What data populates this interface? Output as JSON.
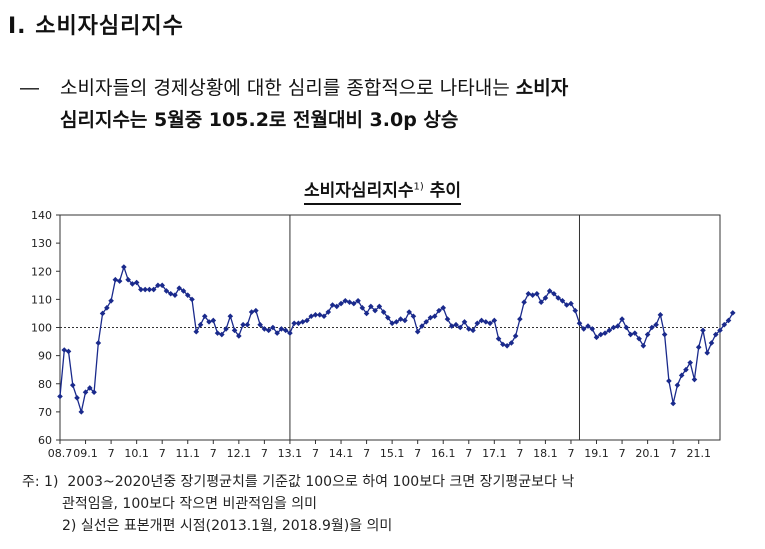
{
  "section": {
    "title": "Ⅰ. 소비자심리지수"
  },
  "lead": {
    "dash": "―",
    "text_normal": "소비자들의 경제상황에 대한 심리를 종합적으로 나타내는 ",
    "text_bold_1": "소비자",
    "line2": "심리지수는 5월중 105.2로 전월대비 3.0p 상승"
  },
  "chart_title": {
    "text": "소비자심리지수",
    "sup": "1)",
    "tail": "추이"
  },
  "notes": {
    "label": "주: 1)",
    "note1_a": "2003~2020년중 장기평균치를 기준값 100으로 하여 100보다 크면 장기평균보다 낙",
    "note1_b": "관적임을, 100보다 작으면 비관적임을 의미",
    "note2": "2) 실선은 표본개편 시점(2013.1월, 2018.9월)을 의미"
  },
  "chart_data": {
    "type": "line",
    "y_ticks": [
      60,
      70,
      80,
      90,
      100,
      110,
      120,
      130,
      140
    ],
    "ylim": [
      60,
      140
    ],
    "xlim": [
      2008.5,
      2021.4167
    ],
    "x_ticks": [
      {
        "label": "08.7",
        "x": 2008.5
      },
      {
        "label": "09.1",
        "x": 2009.0
      },
      {
        "label": "7",
        "x": 2009.5
      },
      {
        "label": "10.1",
        "x": 2010.0
      },
      {
        "label": "7",
        "x": 2010.5
      },
      {
        "label": "11.1",
        "x": 2011.0
      },
      {
        "label": "7",
        "x": 2011.5
      },
      {
        "label": "12.1",
        "x": 2012.0
      },
      {
        "label": "7",
        "x": 2012.5
      },
      {
        "label": "13.1",
        "x": 2013.0
      },
      {
        "label": "7",
        "x": 2013.5
      },
      {
        "label": "14.1",
        "x": 2014.0
      },
      {
        "label": "7",
        "x": 2014.5
      },
      {
        "label": "15.1",
        "x": 2015.0
      },
      {
        "label": "7",
        "x": 2015.5
      },
      {
        "label": "16.1",
        "x": 2016.0
      },
      {
        "label": "7",
        "x": 2016.5
      },
      {
        "label": "17.1",
        "x": 2017.0
      },
      {
        "label": "7",
        "x": 2017.5
      },
      {
        "label": "18.1",
        "x": 2018.0
      },
      {
        "label": "7",
        "x": 2018.5
      },
      {
        "label": "19.1",
        "x": 2019.0
      },
      {
        "label": "7",
        "x": 2019.5
      },
      {
        "label": "20.1",
        "x": 2020.0
      },
      {
        "label": "7",
        "x": 2020.5
      },
      {
        "label": "21.1",
        "x": 2021.0
      }
    ],
    "reference_line": 100,
    "vertical_lines": [
      2013.0,
      2018.6667
    ],
    "series_start": 2008.5,
    "series_step_months": 1,
    "series_values": [
      75.5,
      92,
      91.5,
      79.5,
      75,
      70,
      77,
      78.5,
      77,
      94.5,
      105,
      107,
      109.5,
      117,
      116.5,
      121.5,
      117,
      115.5,
      116,
      113.5,
      113.5,
      113.5,
      113.5,
      115,
      115,
      113,
      112,
      111.5,
      114,
      113,
      111.5,
      110,
      98.5,
      101,
      104,
      102,
      102.5,
      98,
      97.5,
      99.5,
      104,
      99,
      97,
      101,
      101,
      105.5,
      106,
      101,
      99.5,
      99,
      100,
      98,
      99.5,
      99,
      98,
      101.5,
      101.5,
      102,
      102.5,
      104,
      104.5,
      104.5,
      104,
      105.5,
      108,
      107.5,
      108.5,
      109.5,
      109,
      108.5,
      109.5,
      107,
      105,
      107.5,
      106,
      107.5,
      105.5,
      103.5,
      101.5,
      102,
      103,
      102.5,
      105.5,
      104,
      98.5,
      100.5,
      102,
      103.5,
      104,
      106,
      107,
      103,
      100.5,
      101,
      100,
      102,
      99.5,
      99,
      101.5,
      102.5,
      102,
      101.5,
      102.5,
      96,
      94,
      93.5,
      94.5,
      97,
      103,
      109,
      112,
      111.5,
      112,
      109,
      110.5,
      113,
      112,
      110.5,
      109.5,
      108,
      108.5,
      106,
      101.5,
      99.5,
      100.5,
      99.5,
      96.5,
      97.5,
      98,
      99,
      100,
      100.5,
      103,
      100,
      97.5,
      98,
      96,
      93.5,
      97.5,
      100,
      101,
      104.5,
      97.5,
      81,
      73,
      79.5,
      83,
      85,
      87.5,
      81.5,
      93,
      99,
      91,
      94.5,
      97.5,
      99,
      101,
      102.5,
      105.2
    ],
    "xlabel": "",
    "ylabel": "",
    "grid": false
  }
}
